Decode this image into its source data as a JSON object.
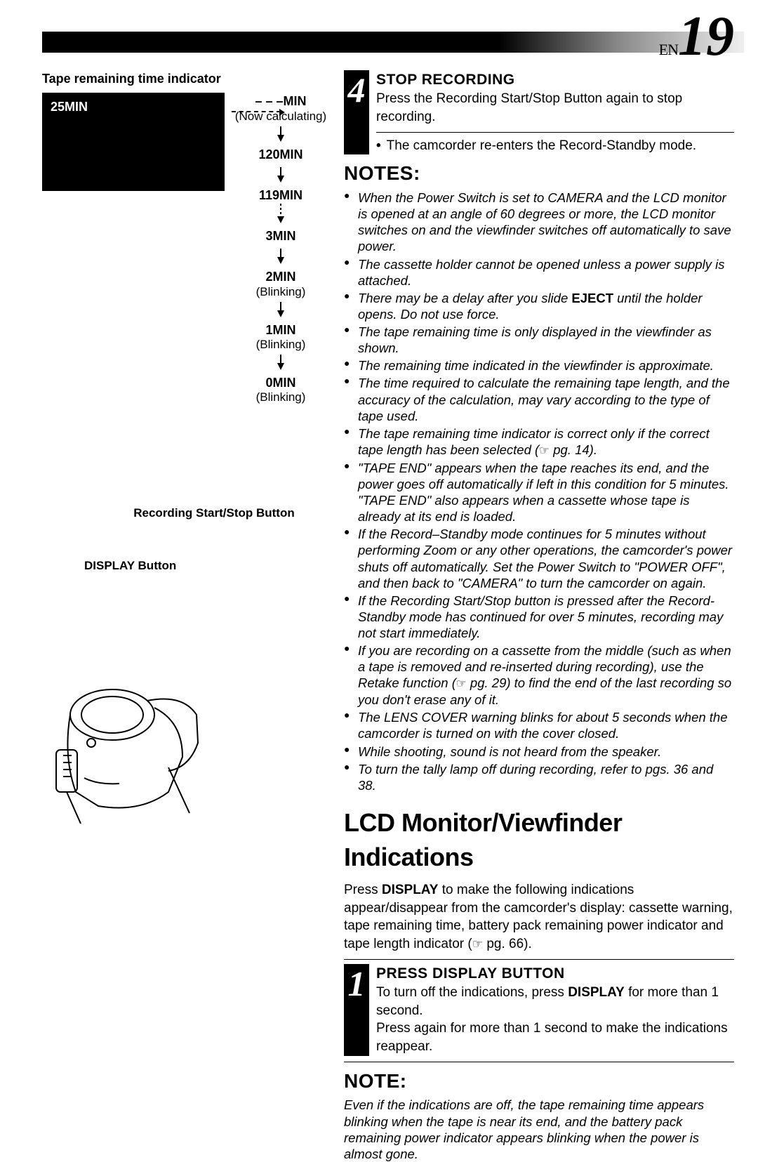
{
  "page": {
    "lang": "EN",
    "number": "19"
  },
  "left": {
    "title": "Tape remaining time indicator",
    "screen_label": "25MIN",
    "flow": [
      {
        "label": "– – –MIN",
        "sub": "(Now calculating)",
        "arrow": "solid"
      },
      {
        "label": "120MIN",
        "sub": "",
        "arrow": "solid"
      },
      {
        "label": "119MIN",
        "sub": "",
        "arrow": "dashed"
      },
      {
        "label": "3MIN",
        "sub": "",
        "arrow": "solid"
      },
      {
        "label": "2MIN",
        "sub": "(Blinking)",
        "arrow": "solid"
      },
      {
        "label": "1MIN",
        "sub": "(Blinking)",
        "arrow": "solid"
      },
      {
        "label": "0MIN",
        "sub": "(Blinking)",
        "arrow": ""
      }
    ],
    "callout_rec": "Recording Start/Stop Button",
    "callout_disp": "DISPLAY Button"
  },
  "step4": {
    "num": "4",
    "title": "STOP RECORDING",
    "body": "Press the Recording Start/Stop Button again to stop recording.",
    "bullet": "The camcorder re-enters the Record-Standby mode."
  },
  "notes_hd": "NOTES:",
  "notes": [
    "When the Power Switch is set to CAMERA and the LCD monitor is opened at an angle of 60 degrees or more, the LCD monitor switches on and the viewfinder switches off automatically to save power.",
    "The cassette holder cannot be opened unless a power supply is attached.",
    "There may be a delay after you slide <b>EJECT</b> until the holder opens. Do not use force.",
    "The tape remaining time is only displayed in the viewfinder as shown.",
    "The remaining time indicated in the viewfinder is approximate.",
    "The time required to calculate the remaining tape length, and the accuracy of the calculation, may vary according to the type of tape used.",
    "The tape remaining time indicator is correct only if the correct tape length has been selected (☞ pg. 14).",
    "\"TAPE END\" appears when the tape reaches its end, and the power goes off automatically if left in this condition for 5 minutes. \"TAPE END\" also appears when a cassette whose tape is already at its end is loaded.",
    "If the Record–Standby mode continues for 5 minutes without performing Zoom or any other operations, the camcorder's power shuts off automatically. Set the Power Switch to \"POWER OFF\", and then back to \"CAMERA\" to turn the camcorder on again.",
    "If the Recording Start/Stop button is pressed after the Record-Standby mode has continued for over 5 minutes, recording may not start immediately.",
    "If you are recording on a cassette from the middle (such as when a tape is removed and re-inserted during recording), use the Retake function (☞ pg. 29) to find the end of the last recording so you don't erase any of it.",
    "The LENS COVER warning blinks for about 5 seconds when the camcorder is turned on with the cover closed.",
    "While shooting, sound is not heard from the speaker.",
    "To turn the tally lamp off during recording, refer to pgs. 36 and 38."
  ],
  "sect_title": "LCD Monitor/Viewfinder Indications",
  "sect_intro": "Press <b>DISPLAY</b> to make the following indications appear/disappear from the camcorder's display: cassette warning, tape remaining time, battery pack remaining power indicator and tape length indicator (☞ pg. 66).",
  "step1": {
    "num": "1",
    "title": "PRESS DISPLAY BUTTON",
    "line1": "To turn off the indications, press <b>DISPLAY</b> for more than 1 second.",
    "line2": "Press again for more than 1 second to make the indications reappear."
  },
  "note2_hd": "NOTE:",
  "note2": "Even if the indications are off, the tape remaining time appears blinking when the tape is near its end, and the battery pack remaining power indicator appears blinking when the power is almost gone."
}
